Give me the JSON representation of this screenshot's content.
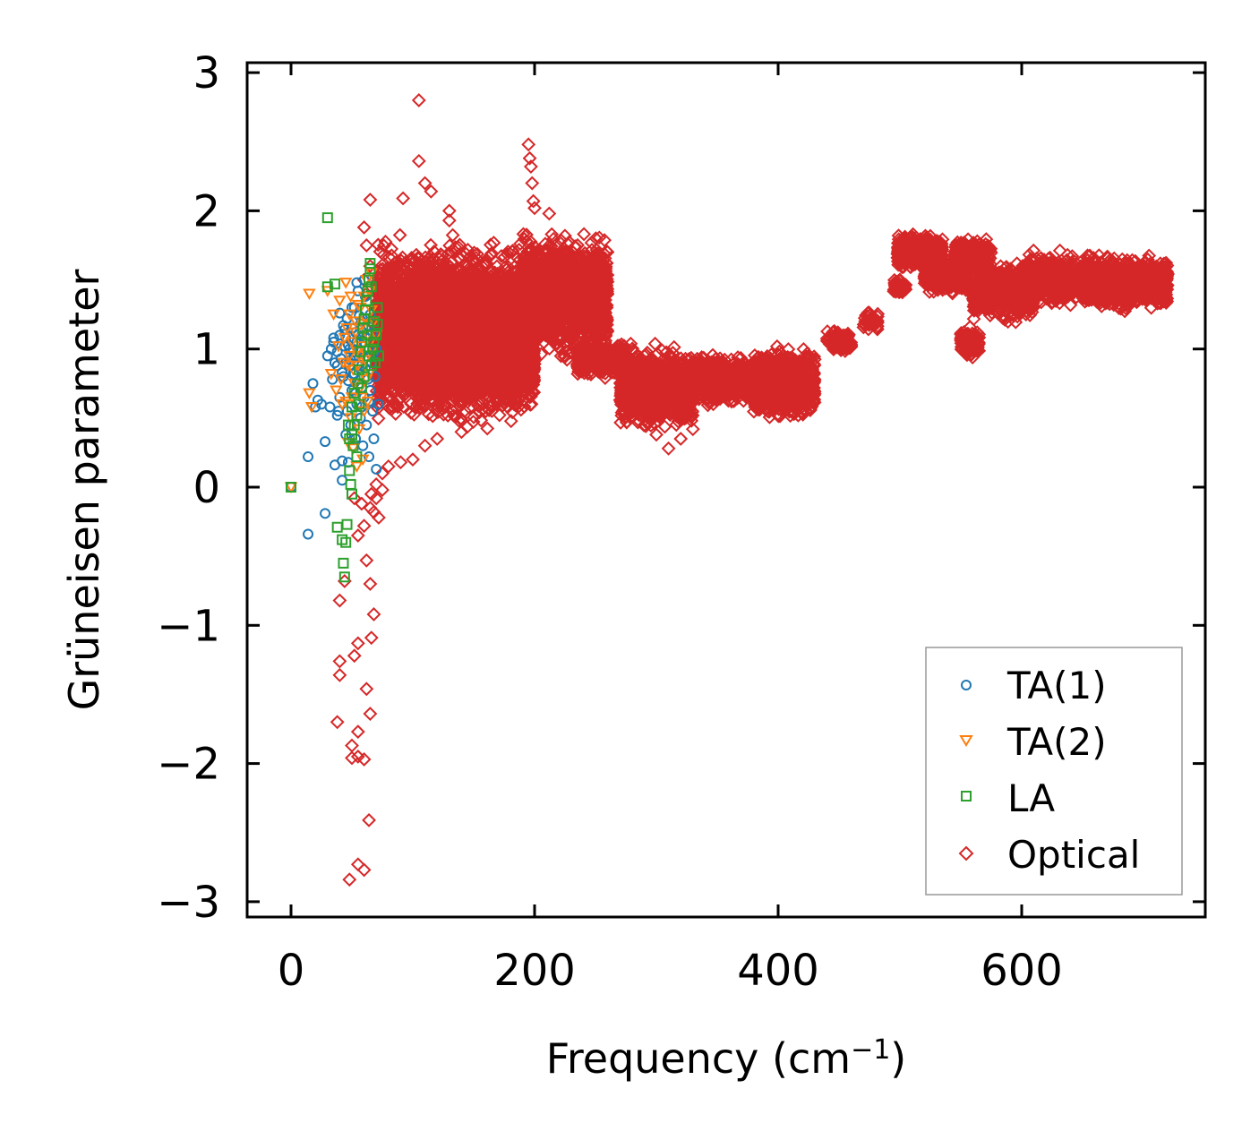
{
  "chart_data": {
    "type": "scatter",
    "xlabel": "Frequency (cm",
    "xlabel_sup": "−1",
    "xlabel_close": ")",
    "ylabel": "Grüneisen parameter",
    "xlim": [
      -35,
      750
    ],
    "ylim": [
      -3.1,
      3.08
    ],
    "xticks": [
      0,
      200,
      400,
      600
    ],
    "xtick_labels": [
      "0",
      "200",
      "400",
      "600"
    ],
    "yticks": [
      -3,
      -2,
      -1,
      0,
      1,
      2,
      3
    ],
    "ytick_labels": [
      "−3",
      "−2",
      "−1",
      "0",
      "1",
      "2",
      "3"
    ],
    "legend_position": "lower-right",
    "series": [
      {
        "name": "TA(1)",
        "label": "TA(1)",
        "marker": "circle",
        "color": "#1f77b4",
        "points": [
          [
            0,
            0
          ],
          [
            14,
            -0.34
          ],
          [
            28,
            -0.19
          ],
          [
            14,
            0.22
          ],
          [
            18,
            0.75
          ],
          [
            20,
            0.58
          ],
          [
            22,
            0.63
          ],
          [
            25,
            0.6
          ],
          [
            28,
            0.33
          ],
          [
            30,
            0.95
          ],
          [
            32,
            0.58
          ],
          [
            33,
            1.0
          ],
          [
            35,
            1.05
          ],
          [
            36,
            0.16
          ],
          [
            38,
            0.52
          ],
          [
            38,
            0.88
          ],
          [
            40,
            0.65
          ],
          [
            40,
            1.26
          ],
          [
            40,
            1.1
          ],
          [
            42,
            0.05
          ],
          [
            42,
            0.19
          ],
          [
            43,
            0.8
          ],
          [
            44,
            1.02
          ],
          [
            45,
            0.38
          ],
          [
            45,
            0.9
          ],
          [
            46,
            0.55
          ],
          [
            47,
            0.18
          ],
          [
            48,
            1.0
          ],
          [
            49,
            0.45
          ],
          [
            50,
            0.7
          ],
          [
            50,
            1.15
          ],
          [
            51,
            0.82
          ],
          [
            52,
            1.3
          ],
          [
            53,
            0.35
          ],
          [
            53,
            0.95
          ],
          [
            54,
            0.6
          ],
          [
            55,
            1.1
          ],
          [
            55,
            1.42
          ],
          [
            56,
            0.75
          ],
          [
            57,
            0.5
          ],
          [
            58,
            0.88
          ],
          [
            58,
            1.2
          ],
          [
            59,
            0.3
          ],
          [
            60,
            1.05
          ],
          [
            60,
            0.65
          ],
          [
            61,
            1.38
          ],
          [
            62,
            0.8
          ],
          [
            62,
            0.45
          ],
          [
            63,
            1.0
          ],
          [
            64,
            0.22
          ],
          [
            65,
            0.7
          ],
          [
            65,
            1.25
          ],
          [
            66,
            0.9
          ],
          [
            67,
            0.55
          ],
          [
            67,
            1.12
          ],
          [
            68,
            0.35
          ],
          [
            69,
            0.8
          ],
          [
            70,
            1.0
          ],
          [
            70,
            0.13
          ],
          [
            72,
            0.6
          ],
          [
            35,
            1.08
          ],
          [
            38,
            0.98
          ],
          [
            44,
            1.14
          ],
          [
            48,
            0.88
          ],
          [
            52,
            0.82
          ],
          [
            57,
            1.18
          ],
          [
            60,
            0.93
          ],
          [
            46,
            1.22
          ],
          [
            50,
            1.3
          ],
          [
            54,
            1.05
          ],
          [
            58,
            0.72
          ],
          [
            62,
            1.08
          ],
          [
            66,
            0.96
          ],
          [
            49,
            0.92
          ],
          [
            53,
            0.68
          ],
          [
            57,
            0.98
          ],
          [
            41,
            0.93
          ],
          [
            43,
            1.17
          ],
          [
            47,
            0.77
          ],
          [
            55,
            0.88
          ],
          [
            59,
            1.12
          ],
          [
            63,
            0.78
          ],
          [
            45,
            1.08
          ],
          [
            51,
            1.0
          ],
          [
            56,
            0.94
          ],
          [
            61,
            0.86
          ],
          [
            64,
            1.16
          ],
          [
            68,
            0.97
          ],
          [
            42,
            0.83
          ],
          [
            47,
            1.03
          ],
          [
            53,
            1.12
          ],
          [
            58,
            0.58
          ],
          [
            54,
            1.48
          ],
          [
            60,
            1.5
          ],
          [
            64,
            0.62
          ],
          [
            36,
            0.9
          ],
          [
            34,
            0.78
          ],
          [
            39,
            0.55
          ],
          [
            52,
            0.95
          ],
          [
            56,
            1.24
          ]
        ]
      },
      {
        "name": "TA(2)",
        "label": "TA(2)",
        "marker": "triangle-down",
        "color": "#ff7f0e",
        "points": [
          [
            0,
            0
          ],
          [
            15,
            1.4
          ],
          [
            15,
            0.68
          ],
          [
            17,
            0.58
          ],
          [
            30,
            1.42
          ],
          [
            33,
            0.82
          ],
          [
            35,
            1.25
          ],
          [
            37,
            0.7
          ],
          [
            40,
            1.35
          ],
          [
            42,
            0.6
          ],
          [
            43,
            0.9
          ],
          [
            45,
            1.48
          ],
          [
            46,
            1.15
          ],
          [
            47,
            0.32
          ],
          [
            48,
            0.95
          ],
          [
            49,
            0.5
          ],
          [
            50,
            1.05
          ],
          [
            51,
            0.28
          ],
          [
            52,
            0.75
          ],
          [
            53,
            1.2
          ],
          [
            54,
            0.15
          ],
          [
            55,
            0.88
          ],
          [
            56,
            0.42
          ],
          [
            57,
            1.3
          ],
          [
            58,
            0.65
          ],
          [
            58,
            1.02
          ],
          [
            59,
            0.2
          ],
          [
            60,
            0.55
          ],
          [
            61,
            0.92
          ],
          [
            62,
            1.5
          ],
          [
            63,
            1.1
          ],
          [
            64,
            0.82
          ],
          [
            65,
            1.42
          ],
          [
            66,
            1.55
          ],
          [
            67,
            1.0
          ],
          [
            68,
            1.2
          ],
          [
            70,
            1.1
          ],
          [
            45,
            0.62
          ],
          [
            48,
            1.25
          ],
          [
            51,
            0.85
          ],
          [
            54,
            0.98
          ],
          [
            57,
            0.72
          ],
          [
            60,
            1.38
          ],
          [
            63,
            0.62
          ],
          [
            66,
            1.28
          ],
          [
            44,
            1.08
          ],
          [
            47,
            0.88
          ],
          [
            50,
            0.65
          ],
          [
            53,
            1.12
          ],
          [
            56,
            0.95
          ],
          [
            59,
            1.18
          ],
          [
            62,
            0.78
          ],
          [
            65,
            1.05
          ],
          [
            49,
            1.38
          ],
          [
            55,
            1.32
          ],
          [
            61,
            1.22
          ],
          [
            41,
            0.78
          ],
          [
            39,
            1.02
          ]
        ]
      },
      {
        "name": "LA",
        "label": "LA",
        "marker": "square",
        "color": "#2ca02c",
        "points": [
          [
            0,
            0
          ],
          [
            30,
            1.95
          ],
          [
            30,
            1.45
          ],
          [
            36,
            1.47
          ],
          [
            38,
            -0.29
          ],
          [
            42,
            -0.38
          ],
          [
            43,
            -0.55
          ],
          [
            44,
            -0.65
          ],
          [
            45,
            -0.4
          ],
          [
            46,
            -0.27
          ],
          [
            47,
            0.45
          ],
          [
            48,
            0.12
          ],
          [
            49,
            0.02
          ],
          [
            50,
            -0.05
          ],
          [
            50,
            0.58
          ],
          [
            51,
            0.3
          ],
          [
            52,
            0.68
          ],
          [
            54,
            0.22
          ],
          [
            55,
            0.75
          ],
          [
            56,
            0.85
          ],
          [
            57,
            0.98
          ],
          [
            58,
            1.05
          ],
          [
            59,
            1.15
          ],
          [
            60,
            1.22
          ],
          [
            61,
            1.28
          ],
          [
            62,
            1.35
          ],
          [
            63,
            1.42
          ],
          [
            64,
            1.5
          ],
          [
            65,
            1.58
          ],
          [
            65,
            1.62
          ],
          [
            66,
            1.45
          ],
          [
            67,
            1.0
          ],
          [
            68,
            1.2
          ],
          [
            69,
            0.9
          ],
          [
            70,
            1.1
          ],
          [
            71,
            1.3
          ],
          [
            72,
            0.95
          ],
          [
            48,
            0.35
          ],
          [
            52,
            0.45
          ],
          [
            56,
            0.6
          ],
          [
            60,
            0.8
          ],
          [
            64,
            0.95
          ],
          [
            68,
            1.05
          ],
          [
            71,
            1.18
          ],
          [
            66,
            0.88
          ],
          [
            62,
            1.1
          ],
          [
            58,
            0.72
          ],
          [
            54,
            0.52
          ],
          [
            50,
            0.38
          ]
        ]
      },
      {
        "name": "Optical",
        "label": "Optical",
        "marker": "diamond",
        "color": "#d62728",
        "points": [
          [
            105,
            2.8
          ],
          [
            105,
            2.36
          ],
          [
            110,
            2.2
          ],
          [
            115,
            2.14
          ],
          [
            92,
            2.09
          ],
          [
            65,
            2.08
          ],
          [
            130,
            2.0
          ],
          [
            130,
            1.93
          ],
          [
            195,
            2.48
          ],
          [
            196,
            2.38
          ],
          [
            197,
            2.32
          ],
          [
            198,
            2.2
          ],
          [
            199,
            2.07
          ],
          [
            200,
            2.02
          ],
          [
            212,
            1.98
          ],
          [
            60,
            1.88
          ],
          [
            62,
            1.75
          ],
          [
            65,
            1.6
          ],
          [
            70,
            1.48
          ],
          [
            60,
            1.5
          ],
          [
            62,
            1.4
          ],
          [
            65,
            1.2
          ],
          [
            62,
            -0.53
          ],
          [
            65,
            -0.7
          ],
          [
            68,
            -0.92
          ],
          [
            66,
            -1.09
          ],
          [
            55,
            -1.13
          ],
          [
            52,
            -1.22
          ],
          [
            40,
            -1.26
          ],
          [
            40,
            -1.36
          ],
          [
            62,
            -1.46
          ],
          [
            65,
            -1.64
          ],
          [
            38,
            -1.7
          ],
          [
            55,
            -1.77
          ],
          [
            50,
            -1.87
          ],
          [
            50,
            -1.96
          ],
          [
            55,
            -1.95
          ],
          [
            60,
            -1.97
          ],
          [
            64,
            -2.41
          ],
          [
            55,
            -2.73
          ],
          [
            60,
            -2.77
          ],
          [
            48,
            -2.84
          ],
          [
            40,
            -0.82
          ],
          [
            44,
            -0.68
          ],
          [
            55,
            -0.35
          ],
          [
            60,
            -0.28
          ],
          [
            65,
            -0.15
          ],
          [
            70,
            -0.08
          ],
          [
            72,
            -0.22
          ],
          [
            75,
            -0.02
          ],
          [
            70,
            0.02
          ],
          [
            66,
            -0.05
          ],
          [
            68,
            -0.18
          ],
          [
            52,
            -0.08
          ],
          [
            58,
            -0.12
          ],
          [
            75,
            0.1
          ],
          [
            80,
            0.15
          ],
          [
            90,
            0.18
          ],
          [
            100,
            0.2
          ],
          [
            110,
            0.3
          ],
          [
            120,
            0.35
          ],
          [
            140,
            0.4
          ],
          [
            160,
            0.55
          ],
          [
            180,
            0.62
          ],
          [
            280,
            0.55
          ],
          [
            310,
            0.28
          ],
          [
            320,
            0.35
          ],
          [
            330,
            0.42
          ],
          [
            300,
            0.38
          ]
        ]
      }
    ],
    "optical_bands": [
      {
        "x0": 70,
        "x1": 200,
        "y0": 0.38,
        "y1": 1.85,
        "count": 4500
      },
      {
        "x0": 100,
        "x1": 160,
        "y0": 0.5,
        "y1": 1.75,
        "count": 1800
      },
      {
        "x0": 150,
        "x1": 200,
        "y0": 0.6,
        "y1": 1.3,
        "count": 600
      },
      {
        "x0": 190,
        "x1": 260,
        "y0": 0.85,
        "y1": 1.9,
        "count": 1500
      },
      {
        "x0": 235,
        "x1": 275,
        "y0": 0.78,
        "y1": 1.05,
        "count": 400
      },
      {
        "x0": 270,
        "x1": 330,
        "y0": 0.38,
        "y1": 1.05,
        "count": 1100
      },
      {
        "x0": 320,
        "x1": 385,
        "y0": 0.58,
        "y1": 0.98,
        "count": 900
      },
      {
        "x0": 380,
        "x1": 430,
        "y0": 0.45,
        "y1": 1.05,
        "count": 900
      },
      {
        "x0": 440,
        "x1": 458,
        "y0": 1.0,
        "y1": 1.15,
        "count": 60
      },
      {
        "x0": 445,
        "x1": 460,
        "y0": 0.98,
        "y1": 1.08,
        "count": 70
      },
      {
        "x0": 470,
        "x1": 482,
        "y0": 1.12,
        "y1": 1.3,
        "count": 50
      },
      {
        "x0": 495,
        "x1": 505,
        "y0": 1.35,
        "y1": 1.55,
        "count": 50
      },
      {
        "x0": 498,
        "x1": 535,
        "y0": 1.55,
        "y1": 1.85,
        "count": 450
      },
      {
        "x0": 520,
        "x1": 555,
        "y0": 1.38,
        "y1": 1.7,
        "count": 400
      },
      {
        "x0": 545,
        "x1": 575,
        "y0": 1.55,
        "y1": 1.82,
        "count": 250
      },
      {
        "x0": 550,
        "x1": 565,
        "y0": 0.9,
        "y1": 1.18,
        "count": 120
      },
      {
        "x0": 560,
        "x1": 610,
        "y0": 1.18,
        "y1": 1.65,
        "count": 700
      },
      {
        "x0": 600,
        "x1": 665,
        "y0": 1.28,
        "y1": 1.72,
        "count": 800
      },
      {
        "x0": 660,
        "x1": 720,
        "y0": 1.25,
        "y1": 1.7,
        "count": 700
      }
    ]
  }
}
